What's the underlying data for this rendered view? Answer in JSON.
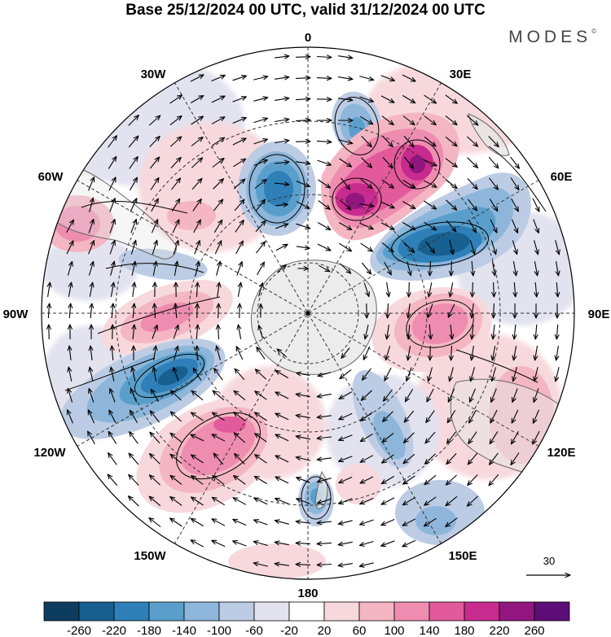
{
  "title": "Base 25/12/2024 00 UTC, valid 31/12/2024 00 UTC",
  "logo": "MODES",
  "logo_mark": "©",
  "longitude_labels": {
    "lon0": "0",
    "lon30e": "30E",
    "lon60e": "60E",
    "lon90e": "90E",
    "lon120e": "120E",
    "lon150e": "150E",
    "lon180": "180",
    "lon150w": "150W",
    "lon120w": "120W",
    "lon90w": "90W",
    "lon60w": "60W",
    "lon30w": "30W"
  },
  "wind_reference": {
    "label": "30"
  },
  "colorbar": {
    "ticks": [
      "-260",
      "-220",
      "-180",
      "-140",
      "-100",
      "-60",
      "-20",
      "20",
      "60",
      "100",
      "140",
      "180",
      "220",
      "260"
    ],
    "colors": [
      "#0d3d5e",
      "#17608f",
      "#2f80b8",
      "#5a9fcc",
      "#8db6da",
      "#bccce4",
      "#e3e2ef",
      "#ffffff",
      "#f7d9dd",
      "#f4b6c3",
      "#ee8db0",
      "#e35a9c",
      "#c82b8e",
      "#921680",
      "#5c0d76"
    ]
  },
  "map_colors": {
    "land": "#e5e5e5",
    "coast": "#666666",
    "grid": "#333333"
  }
}
